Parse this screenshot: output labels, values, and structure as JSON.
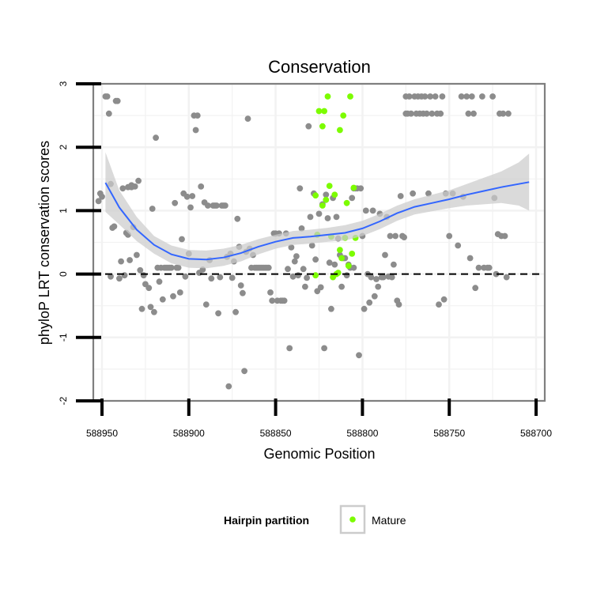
{
  "chart_data": {
    "type": "scatter",
    "title": "Conservation",
    "xlabel": "Genomic Position",
    "ylabel": "phyloP LRT conservation scores",
    "x_reversed": true,
    "xlim": [
      588955,
      588695
    ],
    "ylim": [
      -2,
      3
    ],
    "x_ticks": [
      588950,
      588900,
      588850,
      588800,
      588750,
      588700
    ],
    "x_tick_labels": [
      "588950",
      "588900",
      "588850",
      "588800",
      "588750",
      "588700"
    ],
    "y_ticks": [
      -2,
      -1,
      0,
      1,
      2,
      3
    ],
    "y_tick_labels": [
      "-2",
      "-1",
      "0",
      "1",
      "2",
      "3"
    ],
    "grid": true,
    "reference_line": {
      "y": 0,
      "style": "dashed"
    },
    "colors": {
      "other": "#8c8c8c",
      "mature": "#7cfc00",
      "smooth": "#3366ff",
      "band": "#cccccc",
      "panel_bg": "#ffffff",
      "grid": "#f2f2f2"
    },
    "legend": {
      "title": "Hairpin partition",
      "entries": [
        "Mature"
      ],
      "position": "bottom"
    },
    "series": [
      {
        "key": "other",
        "points": [
          [
            588952,
            1.15
          ],
          [
            588951,
            1.27
          ],
          [
            588950,
            1.22
          ],
          [
            588948,
            2.8
          ],
          [
            588947,
            2.8
          ],
          [
            588946,
            2.53
          ],
          [
            588945,
            1.42
          ],
          [
            588945,
            -0.04
          ],
          [
            588944,
            0.73
          ],
          [
            588943,
            0.75
          ],
          [
            588942,
            2.73
          ],
          [
            588941,
            2.73
          ],
          [
            588940,
            -0.07
          ],
          [
            588939,
            0.2
          ],
          [
            588938,
            1.35
          ],
          [
            588937,
            -0.02
          ],
          [
            588936,
            0.65
          ],
          [
            588935,
            0.62
          ],
          [
            588935,
            1.37
          ],
          [
            588934,
            0.22
          ],
          [
            588933,
            1.4
          ],
          [
            588933,
            1.37
          ],
          [
            588932,
            0.74
          ],
          [
            588931,
            1.38
          ],
          [
            588930,
            0.3
          ],
          [
            588929,
            1.47
          ],
          [
            588928,
            0.06
          ],
          [
            588927,
            -0.55
          ],
          [
            588926,
            -0.02
          ],
          [
            588925,
            -0.16
          ],
          [
            588923,
            -0.22
          ],
          [
            588922,
            -0.52
          ],
          [
            588921,
            1.03
          ],
          [
            588920,
            -0.6
          ],
          [
            588919,
            2.15
          ],
          [
            588918,
            0.1
          ],
          [
            588917,
            -0.12
          ],
          [
            588916,
            0.1
          ],
          [
            588915,
            -0.4
          ],
          [
            588914,
            0.1
          ],
          [
            588913,
            0.1
          ],
          [
            588912,
            0.1
          ],
          [
            588911,
            0.1
          ],
          [
            588910,
            0.1
          ],
          [
            588909,
            -0.35
          ],
          [
            588908,
            1.12
          ],
          [
            588907,
            0.1
          ],
          [
            588906,
            0.1
          ],
          [
            588905,
            -0.29
          ],
          [
            588904,
            0.55
          ],
          [
            588903,
            1.27
          ],
          [
            588902,
            -0.04
          ],
          [
            588901,
            1.22
          ],
          [
            588900,
            0.32
          ],
          [
            588899,
            1.05
          ],
          [
            588898,
            1.23
          ],
          [
            588897,
            2.5
          ],
          [
            588896,
            2.27
          ],
          [
            588895,
            2.5
          ],
          [
            588894,
            0.02
          ],
          [
            588893,
            1.38
          ],
          [
            588892,
            0.07
          ],
          [
            588891,
            1.13
          ],
          [
            588890,
            -0.48
          ],
          [
            588889,
            1.08
          ],
          [
            588888,
            0.22
          ],
          [
            588887,
            -0.07
          ],
          [
            588886,
            1.08
          ],
          [
            588885,
            1.08
          ],
          [
            588884,
            1.08
          ],
          [
            588883,
            -0.62
          ],
          [
            588882,
            -0.05
          ],
          [
            588881,
            1.08
          ],
          [
            588880,
            1.08
          ],
          [
            588879,
            1.08
          ],
          [
            588878,
            0.27
          ],
          [
            588877,
            -1.77
          ],
          [
            588876,
            0.32
          ],
          [
            588875,
            -0.06
          ],
          [
            588874,
            0.2
          ],
          [
            588873,
            -0.6
          ],
          [
            588872,
            0.87
          ],
          [
            588871,
            0.43
          ],
          [
            588870,
            -0.18
          ],
          [
            588869,
            -0.3
          ],
          [
            588868,
            -1.53
          ],
          [
            588867,
            0.35
          ],
          [
            588866,
            2.45
          ],
          [
            588865,
            0.4
          ],
          [
            588864,
            0.1
          ],
          [
            588863,
            0.3
          ],
          [
            588862,
            0.1
          ],
          [
            588861,
            0.1
          ],
          [
            588860,
            0.1
          ],
          [
            588859,
            0.1
          ],
          [
            588858,
            0.1
          ],
          [
            588857,
            0.1
          ],
          [
            588856,
            0.1
          ],
          [
            588855,
            0.1
          ],
          [
            588854,
            0.1
          ],
          [
            588853,
            -0.29
          ],
          [
            588852,
            -0.42
          ],
          [
            588851,
            0.64
          ],
          [
            588850,
            0.64
          ],
          [
            588849,
            -0.42
          ],
          [
            588848,
            0.64
          ],
          [
            588847,
            -0.42
          ],
          [
            588846,
            -0.42
          ],
          [
            588845,
            -0.42
          ],
          [
            588844,
            0.64
          ],
          [
            588843,
            0.08
          ],
          [
            588842,
            -1.17
          ],
          [
            588841,
            0.42
          ],
          [
            588840,
            -0.04
          ],
          [
            588839,
            0.2
          ],
          [
            588838,
            0.28
          ],
          [
            588837,
            -0.02
          ],
          [
            588836,
            1.35
          ],
          [
            588835,
            0.72
          ],
          [
            588834,
            0.08
          ],
          [
            588833,
            -0.2
          ],
          [
            588832,
            -0.06
          ],
          [
            588831,
            2.33
          ],
          [
            588830,
            0.9
          ],
          [
            588829,
            0.45
          ],
          [
            588828,
            1.27
          ],
          [
            588827,
            0.23
          ],
          [
            588826,
            -0.27
          ],
          [
            588825,
            0.95
          ],
          [
            588824,
            -0.21
          ],
          [
            588823,
            1.1
          ],
          [
            588822,
            -1.17
          ],
          [
            588821,
            1.25
          ],
          [
            588820,
            0.88
          ],
          [
            588819,
            0.18
          ],
          [
            588818,
            -0.55
          ],
          [
            588817,
            1.2
          ],
          [
            588816,
            0.15
          ],
          [
            588815,
            0.9
          ],
          [
            588814,
            0.56
          ],
          [
            588813,
            0.3
          ],
          [
            588812,
            -0.2
          ],
          [
            588811,
            0.25
          ],
          [
            588810,
            0.25
          ],
          [
            588809,
            -0.02
          ],
          [
            588808,
            0.15
          ],
          [
            588807,
            0.1
          ],
          [
            588806,
            1.2
          ],
          [
            588805,
            0.1
          ],
          [
            588805,
            1.35
          ],
          [
            588804,
            1.35
          ],
          [
            588803,
            1.35
          ],
          [
            588802,
            -1.28
          ],
          [
            588801,
            1.35
          ],
          [
            588800,
            0.6
          ],
          [
            588799,
            -0.55
          ],
          [
            588798,
            1.0
          ],
          [
            588797,
            0.0
          ],
          [
            588796,
            -0.45
          ],
          [
            588795,
            -0.05
          ],
          [
            588794,
            1.0
          ],
          [
            588793,
            -0.35
          ],
          [
            588792,
            -0.08
          ],
          [
            588791,
            -0.2
          ],
          [
            588790,
            0.95
          ],
          [
            588789,
            -0.05
          ],
          [
            588788,
            -0.05
          ],
          [
            588787,
            0.3
          ],
          [
            588786,
            0.9
          ],
          [
            588785,
            -0.04
          ],
          [
            588784,
            0.6
          ],
          [
            588783,
            -0.05
          ],
          [
            588782,
            0.15
          ],
          [
            588781,
            0.6
          ],
          [
            588780,
            -0.42
          ],
          [
            588779,
            -0.48
          ],
          [
            588778,
            1.23
          ],
          [
            588777,
            0.6
          ],
          [
            588776,
            0.58
          ],
          [
            588775,
            2.53
          ],
          [
            588775,
            2.8
          ],
          [
            588774,
            2.53
          ],
          [
            588773,
            2.8
          ],
          [
            588772,
            2.53
          ],
          [
            588771,
            1.27
          ],
          [
            588770,
            2.8
          ],
          [
            588769,
            2.53
          ],
          [
            588768,
            2.8
          ],
          [
            588767,
            2.53
          ],
          [
            588766,
            2.8
          ],
          [
            588765,
            2.53
          ],
          [
            588764,
            2.8
          ],
          [
            588763,
            2.53
          ],
          [
            588762,
            1.27
          ],
          [
            588761,
            2.8
          ],
          [
            588760,
            2.53
          ],
          [
            588758,
            2.8
          ],
          [
            588757,
            2.53
          ],
          [
            588756,
            -0.48
          ],
          [
            588755,
            2.53
          ],
          [
            588754,
            2.8
          ],
          [
            588753,
            -0.4
          ],
          [
            588752,
            1.27
          ],
          [
            588750,
            0.6
          ],
          [
            588748,
            1.27
          ],
          [
            588745,
            0.45
          ],
          [
            588743,
            2.8
          ],
          [
            588742,
            1.22
          ],
          [
            588740,
            2.8
          ],
          [
            588739,
            2.53
          ],
          [
            588738,
            0.25
          ],
          [
            588737,
            2.8
          ],
          [
            588736,
            2.53
          ],
          [
            588735,
            -0.22
          ],
          [
            588733,
            0.1
          ],
          [
            588731,
            2.8
          ],
          [
            588730,
            0.1
          ],
          [
            588728,
            0.1
          ],
          [
            588727,
            0.1
          ],
          [
            588725,
            2.8
          ],
          [
            588724,
            1.2
          ],
          [
            588723,
            0.0
          ],
          [
            588722,
            0.63
          ],
          [
            588721,
            2.53
          ],
          [
            588720,
            0.6
          ],
          [
            588719,
            2.53
          ],
          [
            588718,
            0.6
          ],
          [
            588717,
            -0.05
          ],
          [
            588716,
            2.53
          ]
        ]
      },
      {
        "key": "mature",
        "points": [
          [
            588827,
            -0.02
          ],
          [
            588827,
            1.24
          ],
          [
            588826,
            0.62
          ],
          [
            588825,
            2.57
          ],
          [
            588823,
            2.33
          ],
          [
            588823,
            1.08
          ],
          [
            588822,
            2.57
          ],
          [
            588821,
            1.17
          ],
          [
            588820,
            2.8
          ],
          [
            588819,
            1.39
          ],
          [
            588818,
            0.59
          ],
          [
            588817,
            -0.05
          ],
          [
            588816,
            1.25
          ],
          [
            588815,
            0.0
          ],
          [
            588814,
            0.02
          ],
          [
            588813,
            2.27
          ],
          [
            588813,
            0.38
          ],
          [
            588812,
            0.25
          ],
          [
            588811,
            2.5
          ],
          [
            588810,
            0.57
          ],
          [
            588809,
            1.12
          ],
          [
            588808,
            0.13
          ],
          [
            588807,
            2.8
          ],
          [
            588806,
            0.32
          ],
          [
            588805,
            1.36
          ],
          [
            588804,
            0.57
          ]
        ]
      }
    ],
    "smooth": [
      [
        588948,
        1.44
      ],
      [
        588940,
        1.05
      ],
      [
        588930,
        0.7
      ],
      [
        588920,
        0.46
      ],
      [
        588910,
        0.31
      ],
      [
        588900,
        0.24
      ],
      [
        588890,
        0.23
      ],
      [
        588880,
        0.26
      ],
      [
        588870,
        0.33
      ],
      [
        588860,
        0.43
      ],
      [
        588850,
        0.51
      ],
      [
        588840,
        0.57
      ],
      [
        588830,
        0.59
      ],
      [
        588820,
        0.62
      ],
      [
        588810,
        0.65
      ],
      [
        588800,
        0.72
      ],
      [
        588790,
        0.83
      ],
      [
        588780,
        0.96
      ],
      [
        588770,
        1.06
      ],
      [
        588760,
        1.12
      ],
      [
        588750,
        1.18
      ],
      [
        588740,
        1.25
      ],
      [
        588730,
        1.31
      ],
      [
        588720,
        1.37
      ],
      [
        588710,
        1.42
      ],
      [
        588704,
        1.45
      ]
    ],
    "band": [
      [
        588948,
        0.98,
        1.92
      ],
      [
        588940,
        0.78,
        1.32
      ],
      [
        588930,
        0.52,
        0.9
      ],
      [
        588920,
        0.32,
        0.6
      ],
      [
        588910,
        0.17,
        0.45
      ],
      [
        588900,
        0.1,
        0.38
      ],
      [
        588890,
        0.09,
        0.37
      ],
      [
        588880,
        0.13,
        0.4
      ],
      [
        588870,
        0.2,
        0.46
      ],
      [
        588860,
        0.31,
        0.55
      ],
      [
        588850,
        0.4,
        0.62
      ],
      [
        588840,
        0.46,
        0.68
      ],
      [
        588830,
        0.48,
        0.7
      ],
      [
        588820,
        0.51,
        0.73
      ],
      [
        588810,
        0.53,
        0.77
      ],
      [
        588800,
        0.6,
        0.84
      ],
      [
        588790,
        0.71,
        0.95
      ],
      [
        588780,
        0.84,
        1.08
      ],
      [
        588770,
        0.94,
        1.18
      ],
      [
        588760,
        0.99,
        1.25
      ],
      [
        588750,
        1.04,
        1.32
      ],
      [
        588740,
        1.08,
        1.42
      ],
      [
        588730,
        1.1,
        1.52
      ],
      [
        588720,
        1.12,
        1.62
      ],
      [
        588710,
        1.08,
        1.76
      ],
      [
        588704,
        1.0,
        1.9
      ]
    ]
  }
}
